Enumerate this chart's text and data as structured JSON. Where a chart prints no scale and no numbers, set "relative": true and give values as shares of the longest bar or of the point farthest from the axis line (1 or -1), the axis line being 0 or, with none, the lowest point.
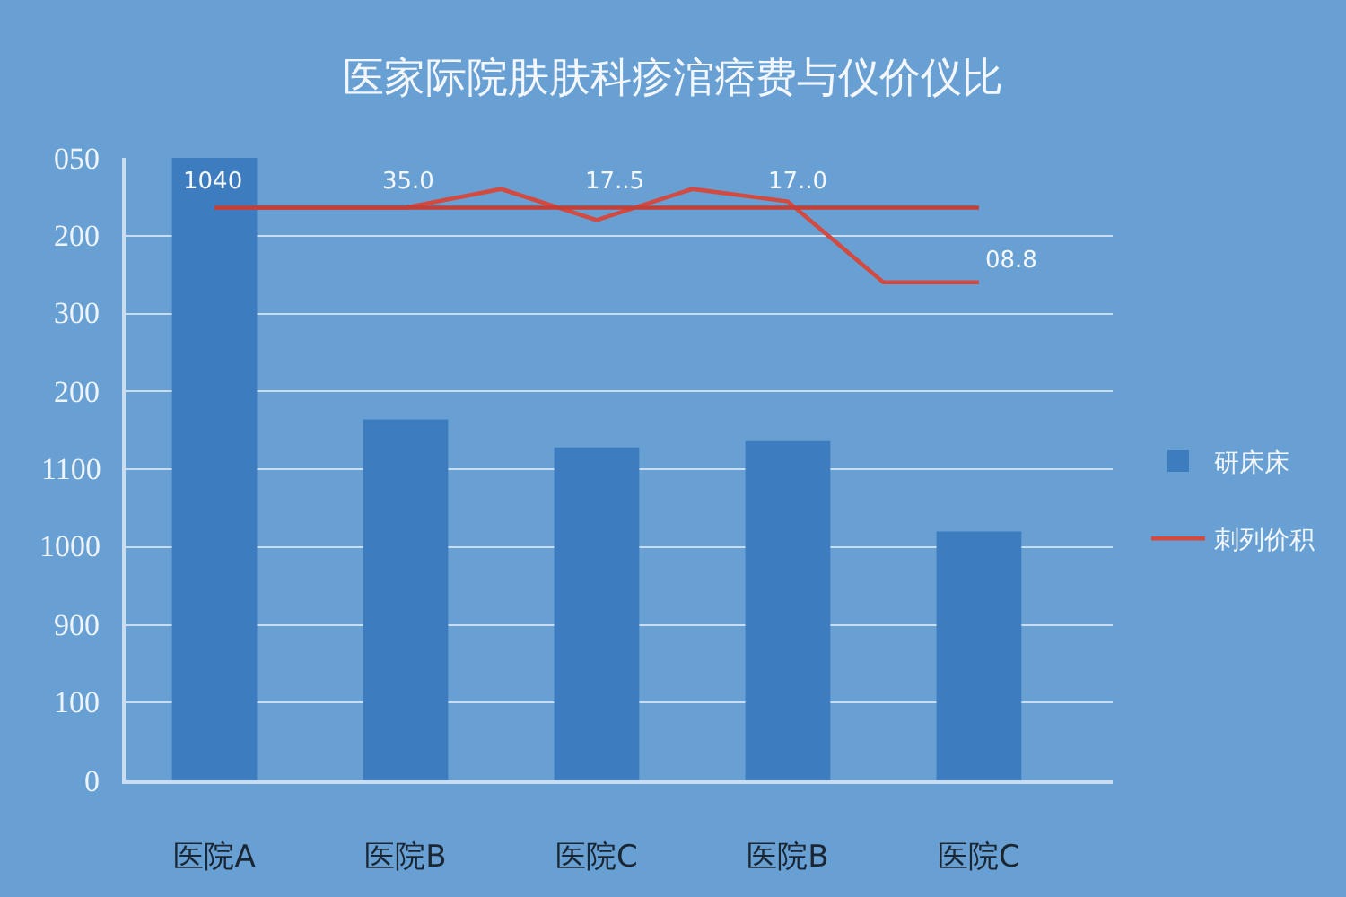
{
  "chart_data": {
    "type": "bar",
    "relative": true,
    "title": "医家际院肤肤科疹涫痞费与仪价仪比",
    "categories": [
      "医院A",
      null,
      "医院B",
      null,
      "医院C",
      null,
      "医院B",
      null,
      "医院C"
    ],
    "series": [
      {
        "name": "研床床",
        "color": "#3d7dbf",
        "values": [
          1,
          null,
          0.58,
          null,
          0.535,
          null,
          0.545,
          null,
          0.4
        ]
      },
      {
        "name": "刺列价积",
        "type": "line",
        "color": "#d24a40",
        "values": [
          0.92,
          0.92,
          0.92,
          0.95,
          0.9,
          0.95,
          0.93,
          0.8,
          0.8
        ]
      },
      {
        "type": "line",
        "color": "#c53f36",
        "values": [
          0.92,
          0.92,
          0.92,
          0.92,
          0.92,
          0.92,
          0.92,
          0.92,
          0.92
        ]
      }
    ],
    "annotations": [
      "1040",
      "35.0",
      "17..5",
      "17..0",
      "08.8",
      "050",
      "200",
      "300",
      "200",
      "1100",
      "1000",
      "900",
      "100",
      "0"
    ],
    "grid": "y",
    "legend": "right",
    "marker": "none",
    "line_style": "solid"
  }
}
